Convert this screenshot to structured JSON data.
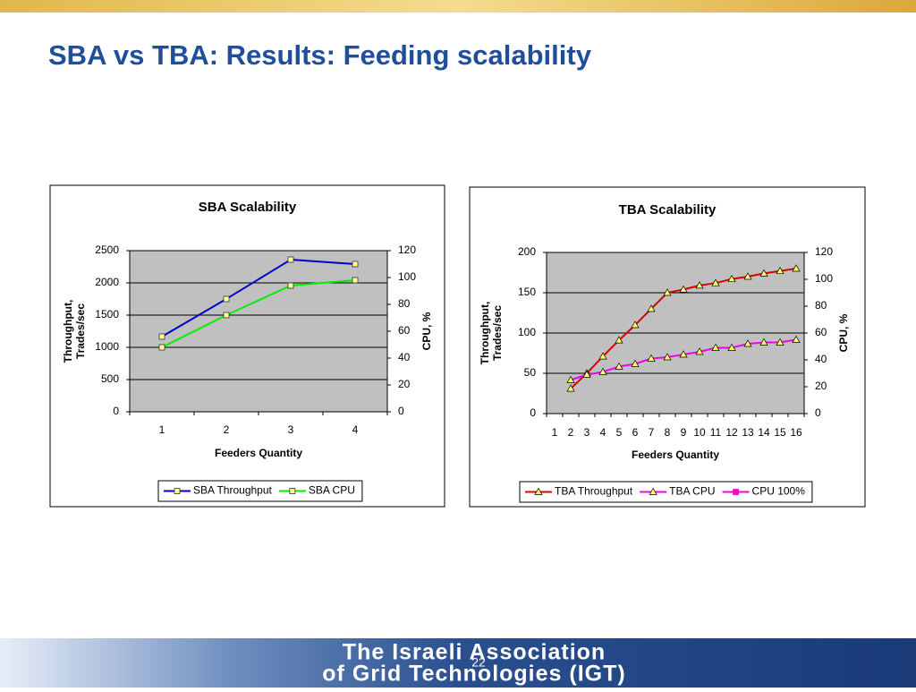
{
  "title": "SBA vs TBA: Results: Feeding scalability",
  "footer": {
    "lines": [
      "The Israeli Association",
      "of Grid Technologies (IGT)"
    ],
    "page_number": "22"
  },
  "chart_data": [
    {
      "type": "line",
      "title": "SBA Scalability",
      "xlabel": "Feeders Quantity",
      "ylabel": [
        "Throughput,",
        "Trades/sec"
      ],
      "y2label": "CPU, %",
      "categories": [
        "1",
        "2",
        "3",
        "4"
      ],
      "ylim": [
        0,
        2500
      ],
      "yticks": [
        0,
        500,
        1000,
        1500,
        2000,
        2500
      ],
      "y2lim": [
        0,
        120
      ],
      "y2ticks": [
        0,
        20,
        40,
        60,
        80,
        100,
        120
      ],
      "grid": true,
      "legend": "bottom",
      "series": [
        {
          "name": "SBA Throughput",
          "color": "#0000cc",
          "marker": "square",
          "values": [
            1167,
            1750,
            2361,
            2292
          ]
        },
        {
          "name": "SBA CPU",
          "color": "#00ee00",
          "marker": "square",
          "axis": "y2",
          "values": [
            48,
            72,
            94,
            98
          ]
        }
      ]
    },
    {
      "type": "line",
      "title": "TBA Scalability",
      "xlabel": "Feeders Quantity",
      "ylabel": [
        "Throughput,",
        "Trades/sec"
      ],
      "y2label": "CPU, %",
      "categories": [
        "1",
        "2",
        "3",
        "4",
        "5",
        "6",
        "7",
        "8",
        "9",
        "10",
        "11",
        "12",
        "13",
        "14",
        "15",
        "16"
      ],
      "ylim": [
        0,
        200
      ],
      "yticks": [
        0,
        50,
        100,
        150,
        200
      ],
      "y2lim": [
        0,
        120
      ],
      "y2ticks": [
        0,
        20,
        40,
        60,
        80,
        100,
        120
      ],
      "grid": true,
      "legend": "bottom",
      "series": [
        {
          "name": "TBA Throughput",
          "color": "#dd0000",
          "marker": "triangle",
          "values": [
            null,
            31,
            50,
            71,
            91,
            110,
            130,
            150,
            154,
            159,
            162,
            167,
            170,
            174,
            177,
            180
          ]
        },
        {
          "name": "TBA CPU",
          "color": "#ee00ee",
          "marker": "triangle",
          "axis": "y2",
          "values": [
            null,
            25,
            29,
            31,
            35,
            37,
            41,
            42,
            44,
            46,
            49,
            49,
            52,
            53,
            53,
            55
          ]
        },
        {
          "name": "CPU 100%",
          "color": "#ff00cc",
          "marker": "square",
          "axis": "y2",
          "values": [
            null,
            null,
            null,
            null,
            null,
            null,
            null,
            null,
            null,
            null,
            null,
            null,
            null,
            null,
            null,
            null
          ]
        }
      ]
    }
  ]
}
